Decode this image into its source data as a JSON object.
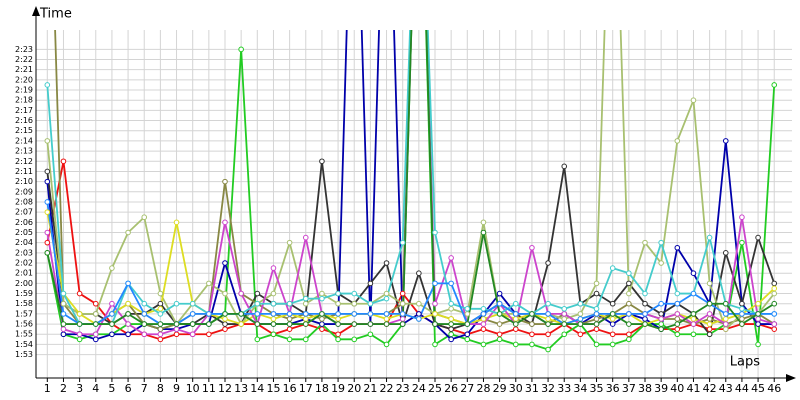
{
  "chart_data": {
    "type": "line",
    "x_label": "Laps",
    "y_label": "Time",
    "grid": true,
    "xlim": [
      0.3,
      47.1
    ],
    "ylim": [
      110.7,
      144.9
    ],
    "xticks": [
      1,
      2,
      3,
      4,
      5,
      6,
      7,
      8,
      9,
      10,
      11,
      12,
      13,
      14,
      15,
      16,
      17,
      18,
      19,
      20,
      21,
      22,
      23,
      24,
      25,
      26,
      27,
      28,
      29,
      30,
      31,
      32,
      33,
      34,
      35,
      36,
      37,
      38,
      39,
      40,
      41,
      42,
      43,
      44,
      45,
      46
    ],
    "yticks": [
      {
        "value": 113,
        "label": "1:53"
      },
      {
        "value": 114,
        "label": "1:54"
      },
      {
        "value": 115,
        "label": "1:55"
      },
      {
        "value": 116,
        "label": "1:56"
      },
      {
        "value": 117,
        "label": "1:57"
      },
      {
        "value": 118,
        "label": "1:58"
      },
      {
        "value": 119,
        "label": "1:59"
      },
      {
        "value": 120,
        "label": "2:00"
      },
      {
        "value": 121,
        "label": "2:01"
      },
      {
        "value": 122,
        "label": "2:02"
      },
      {
        "value": 123,
        "label": "2:03"
      },
      {
        "value": 124,
        "label": "2:04"
      },
      {
        "value": 125,
        "label": "2:05"
      },
      {
        "value": 126,
        "label": "2:06"
      },
      {
        "value": 127,
        "label": "2:07"
      },
      {
        "value": 128,
        "label": "2:08"
      },
      {
        "value": 129,
        "label": "2:09"
      },
      {
        "value": 130,
        "label": "2:10"
      },
      {
        "value": 131,
        "label": "2:11"
      },
      {
        "value": 132,
        "label": "2:12"
      },
      {
        "value": 133,
        "label": "2:13"
      },
      {
        "value": 134,
        "label": "2:14"
      },
      {
        "value": 135,
        "label": "2:15"
      },
      {
        "value": 136,
        "label": "2:16"
      },
      {
        "value": 137,
        "label": "2:17"
      },
      {
        "value": 138,
        "label": "2:18"
      },
      {
        "value": 139,
        "label": "2:19"
      },
      {
        "value": 140,
        "label": "2:20"
      },
      {
        "value": 141,
        "label": "2:21"
      },
      {
        "value": 142,
        "label": "2:22"
      },
      {
        "value": 143,
        "label": "2:23"
      }
    ],
    "x": [
      1,
      2,
      3,
      4,
      5,
      6,
      7,
      8,
      9,
      10,
      11,
      12,
      13,
      14,
      15,
      16,
      17,
      18,
      19,
      20,
      21,
      22,
      23,
      24,
      25,
      26,
      27,
      28,
      29,
      30,
      31,
      32,
      33,
      34,
      35,
      36,
      37,
      38,
      39,
      40,
      41,
      42,
      43,
      44,
      45,
      46
    ],
    "series": [
      {
        "color": "#ee1111",
        "values": [
          124,
          132,
          119,
          118,
          116,
          115,
          115,
          114.5,
          115,
          115,
          115,
          115.5,
          116,
          116,
          115,
          115.5,
          116,
          115.5,
          115,
          116,
          116,
          116,
          119,
          117,
          116,
          115.5,
          115,
          115.5,
          115,
          115.5,
          115,
          115,
          116,
          115,
          115.5,
          115,
          115,
          116,
          115.5,
          115.5,
          116,
          115.5,
          115.5,
          116,
          116,
          115.5
        ]
      },
      {
        "color": "#22cc22",
        "values": [
          123,
          115,
          114.5,
          115,
          115,
          116,
          116,
          115.5,
          116,
          116,
          116,
          117,
          143,
          114.5,
          115,
          114.5,
          114.5,
          116,
          114.5,
          114.5,
          115,
          114,
          116,
          170,
          114,
          115,
          114.5,
          114,
          114.5,
          114,
          114,
          113.5,
          115,
          116,
          114,
          114,
          114.5,
          116,
          116,
          115,
          115,
          115,
          116,
          124,
          114,
          139.5
        ]
      },
      {
        "color": "#0000aa",
        "values": [
          130,
          115,
          115,
          114.5,
          115,
          115,
          116,
          115.5,
          115.5,
          116,
          116,
          122,
          117,
          116,
          116,
          116,
          116.5,
          116,
          116,
          170,
          116,
          170,
          116,
          117,
          116,
          114.5,
          115,
          117,
          119,
          117,
          117,
          116,
          117,
          116,
          117,
          116,
          117,
          116.5,
          115.5,
          123.5,
          121,
          118,
          134,
          118,
          116,
          116
        ]
      },
      {
        "color": "#333333",
        "values": [
          131,
          118,
          117,
          117,
          116,
          117,
          117,
          118,
          116,
          116,
          117,
          116,
          116,
          119,
          118,
          118,
          117,
          132,
          119,
          118,
          120,
          122,
          116,
          121,
          116,
          115.5,
          116,
          117,
          118,
          117,
          116,
          122,
          131.5,
          118,
          119,
          118,
          120,
          118,
          117,
          118,
          117,
          115,
          123,
          118,
          124.5,
          120
        ]
      },
      {
        "color": "#888844",
        "values": [
          170,
          118,
          116,
          116,
          117,
          118,
          116,
          115.5,
          116,
          117,
          117,
          130,
          119,
          118,
          117,
          116.5,
          117,
          116.5,
          117,
          117,
          117,
          117,
          118,
          170,
          117,
          116.5,
          116,
          116.5,
          116,
          116.5,
          116,
          116,
          117,
          116,
          116.5,
          117,
          118,
          117,
          116.5,
          116.5,
          116,
          116.5,
          116,
          116.5,
          117,
          116
        ]
      },
      {
        "color": "#a8c070",
        "values": [
          134,
          118,
          117,
          117,
          121.5,
          125,
          126.5,
          119,
          116,
          118,
          120,
          119,
          116,
          118,
          119,
          124,
          118,
          119,
          118,
          118,
          118,
          119,
          118,
          118,
          117,
          117.5,
          117,
          126,
          117,
          117,
          117,
          117,
          116.5,
          117,
          120,
          170,
          119,
          124,
          122,
          134,
          138,
          120,
          115.5,
          117,
          117,
          119
        ]
      },
      {
        "color": "#dddd22",
        "values": [
          127,
          119,
          117,
          116,
          117,
          118,
          117,
          117.5,
          126,
          118,
          117,
          116.5,
          116,
          117,
          116.5,
          117,
          116.5,
          117,
          116.5,
          117,
          117,
          116.5,
          117,
          116.5,
          117,
          116.5,
          116,
          116.5,
          117,
          116.5,
          117,
          116.5,
          116,
          116.5,
          117,
          116.5,
          117,
          116,
          116.5,
          117,
          116.5,
          116,
          116.5,
          117,
          118,
          119.5
        ]
      },
      {
        "color": "#cc44cc",
        "values": [
          125,
          115.5,
          115,
          115,
          118,
          116,
          115,
          115,
          115.5,
          115,
          117,
          126,
          119,
          116,
          121.5,
          117,
          124.5,
          117,
          116,
          116,
          116,
          116,
          116.5,
          170,
          118,
          122.5,
          116,
          116,
          118,
          116,
          123.5,
          117,
          117,
          116,
          116,
          117,
          117,
          117,
          116.5,
          117,
          116,
          117,
          116,
          126.5,
          116.5,
          116
        ]
      },
      {
        "color": "#44cccc",
        "values": [
          139.5,
          119,
          116,
          116,
          116,
          120,
          118,
          117,
          118,
          118,
          117,
          117,
          117,
          118,
          118,
          118,
          118.5,
          118.5,
          119,
          119,
          118,
          118.5,
          124,
          170,
          125,
          118,
          117.5,
          117.5,
          117,
          118,
          117,
          118,
          117.5,
          118,
          117.5,
          121.5,
          121,
          119,
          124,
          119,
          119,
          124.5,
          118,
          117.5,
          117,
          117
        ]
      },
      {
        "color": "#2288ff",
        "values": [
          128,
          117,
          116,
          116,
          117,
          120,
          117,
          116,
          116,
          117,
          117,
          117,
          117,
          117,
          117,
          117,
          117,
          117,
          117,
          117,
          117,
          117,
          117,
          116.5,
          120,
          120,
          116,
          117,
          118,
          117,
          117,
          117,
          116,
          116.5,
          117,
          117,
          117,
          117,
          118,
          118,
          119,
          118,
          117,
          117,
          117,
          117
        ]
      },
      {
        "color": "#228822",
        "values": [
          123,
          116,
          116,
          116,
          116,
          117,
          116,
          116,
          116,
          116,
          116,
          117,
          117,
          116,
          116,
          116,
          116,
          117,
          116,
          116,
          116,
          116,
          116,
          170,
          116,
          116,
          116,
          125,
          117,
          116,
          117,
          116,
          116,
          116,
          116,
          117,
          116,
          116,
          115.5,
          116,
          117,
          118,
          118,
          116,
          117,
          118
        ]
      }
    ]
  }
}
